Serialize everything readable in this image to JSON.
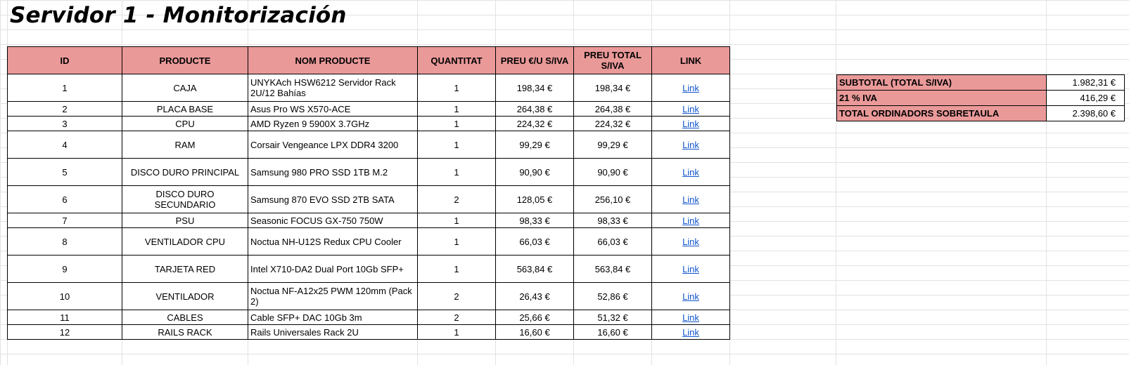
{
  "title": "Servidor 1 - Monitorización",
  "headers": [
    "ID",
    "PRODUCTE",
    "NOM PRODUCTE",
    "QUANTITAT",
    "PREU €/U S/IVA",
    "PREU TOTAL S/IVA",
    "LINK"
  ],
  "rows": [
    {
      "id": "1",
      "producte": "CAJA",
      "nom": "UNYKAch HSW6212 Servidor Rack 2U/12 Bahías",
      "quantitat": "1",
      "preu_u": "198,34 €",
      "preu_total": "198,34 €",
      "link": "Link"
    },
    {
      "id": "2",
      "producte": "PLACA BASE",
      "nom": "Asus Pro WS X570-ACE",
      "quantitat": "1",
      "preu_u": "264,38 €",
      "preu_total": "264,38 €",
      "link": "Link"
    },
    {
      "id": "3",
      "producte": "CPU",
      "nom": "AMD Ryzen 9 5900X 3.7GHz",
      "quantitat": "1",
      "preu_u": "224,32 €",
      "preu_total": "224,32 €",
      "link": "Link"
    },
    {
      "id": "4",
      "producte": "RAM",
      "nom": "Corsair Vengeance LPX DDR4 3200",
      "quantitat": "1",
      "preu_u": "99,29 €",
      "preu_total": "99,29 €",
      "link": "Link"
    },
    {
      "id": "5",
      "producte": "DISCO DURO PRINCIPAL",
      "nom": "Samsung 980 PRO SSD 1TB M.2",
      "quantitat": "1",
      "preu_u": "90,90 €",
      "preu_total": "90,90 €",
      "link": "Link"
    },
    {
      "id": "6",
      "producte": "DISCO DURO SECUNDARIO",
      "nom": "Samsung 870 EVO SSD 2TB SATA",
      "quantitat": "2",
      "preu_u": "128,05 €",
      "preu_total": "256,10 €",
      "link": "Link"
    },
    {
      "id": "7",
      "producte": "PSU",
      "nom": "Seasonic FOCUS GX-750 750W",
      "quantitat": "1",
      "preu_u": "98,33 €",
      "preu_total": "98,33 €",
      "link": "Link"
    },
    {
      "id": "8",
      "producte": "VENTILADOR CPU",
      "nom": "Noctua NH-U12S Redux CPU Cooler",
      "quantitat": "1",
      "preu_u": "66,03 €",
      "preu_total": "66,03 €",
      "link": "Link"
    },
    {
      "id": "9",
      "producte": "TARJETA RED",
      "nom": "Intel X710-DA2 Dual Port 10Gb SFP+",
      "quantitat": "1",
      "preu_u": "563,84 €",
      "preu_total": "563,84 €",
      "link": "Link"
    },
    {
      "id": "10",
      "producte": "VENTILADOR",
      "nom": "Noctua NF-A12x25 PWM 120mm (Pack 2)",
      "quantitat": "2",
      "preu_u": "26,43 €",
      "preu_total": "52,86 €",
      "link": "Link"
    },
    {
      "id": "11",
      "producte": "CABLES",
      "nom": "Cable SFP+ DAC 10Gb 3m",
      "quantitat": "2",
      "preu_u": "25,66 €",
      "preu_total": "51,32 €",
      "link": "Link"
    },
    {
      "id": "12",
      "producte": "RAILS RACK",
      "nom": "Rails Universales Rack 2U",
      "quantitat": "1",
      "preu_u": "16,60 €",
      "preu_total": "16,60 €",
      "link": "Link"
    }
  ],
  "totals": [
    {
      "label": "SUBTOTAL (TOTAL S/IVA)",
      "value": "1.982,31 €"
    },
    {
      "label": "21 % IVA",
      "value": "416,29 €"
    },
    {
      "label": "TOTAL ORDINADORS SOBRETAULA",
      "value": "2.398,60 €"
    }
  ]
}
